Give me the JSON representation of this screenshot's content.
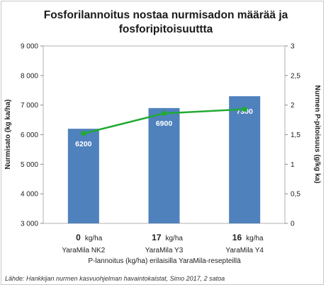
{
  "chart_data": {
    "type": "bar",
    "title_lines": [
      "Fosforilannoitus nostaa nurmisadon määrää ja",
      "fosforipitoisuuttta"
    ],
    "categories": [
      "YaraMila NK2",
      "YaraMila Y3",
      "YaraMila Y4"
    ],
    "x_amounts": [
      "0",
      "17",
      "16"
    ],
    "x_unit": "kg/ha",
    "xlabel": "P-lannoitus (kg/ha) erilaisilla YaraMila-resepteillä",
    "ylabel": "Nurmisato (kg ka/ha)",
    "y2label": "Nurmen P-pitoisuus  (g/kg ka)",
    "ylim": [
      3000,
      9000
    ],
    "y_ticks": [
      "3 000",
      "4 000",
      "5 000",
      "6 000",
      "7 000",
      "8 000",
      "9 000"
    ],
    "y2lim": [
      0,
      3
    ],
    "y2_ticks": [
      "0",
      "0,5",
      "1",
      "1,5",
      "2",
      "2,5",
      "3"
    ],
    "series": [
      {
        "kind": "bar",
        "axis": "left",
        "values": [
          6200,
          6900,
          7300
        ],
        "labels": [
          "6200",
          "6900",
          "7300"
        ],
        "color": "#4f81bd"
      },
      {
        "kind": "line",
        "axis": "right",
        "values": [
          1.52,
          1.86,
          1.93
        ],
        "color": "#22aa33"
      }
    ],
    "grid": false,
    "source": "Lähde: Hankkijan nurmen kasvuohjelman havaintokaistat, Simo 2017, 2 satoa"
  }
}
